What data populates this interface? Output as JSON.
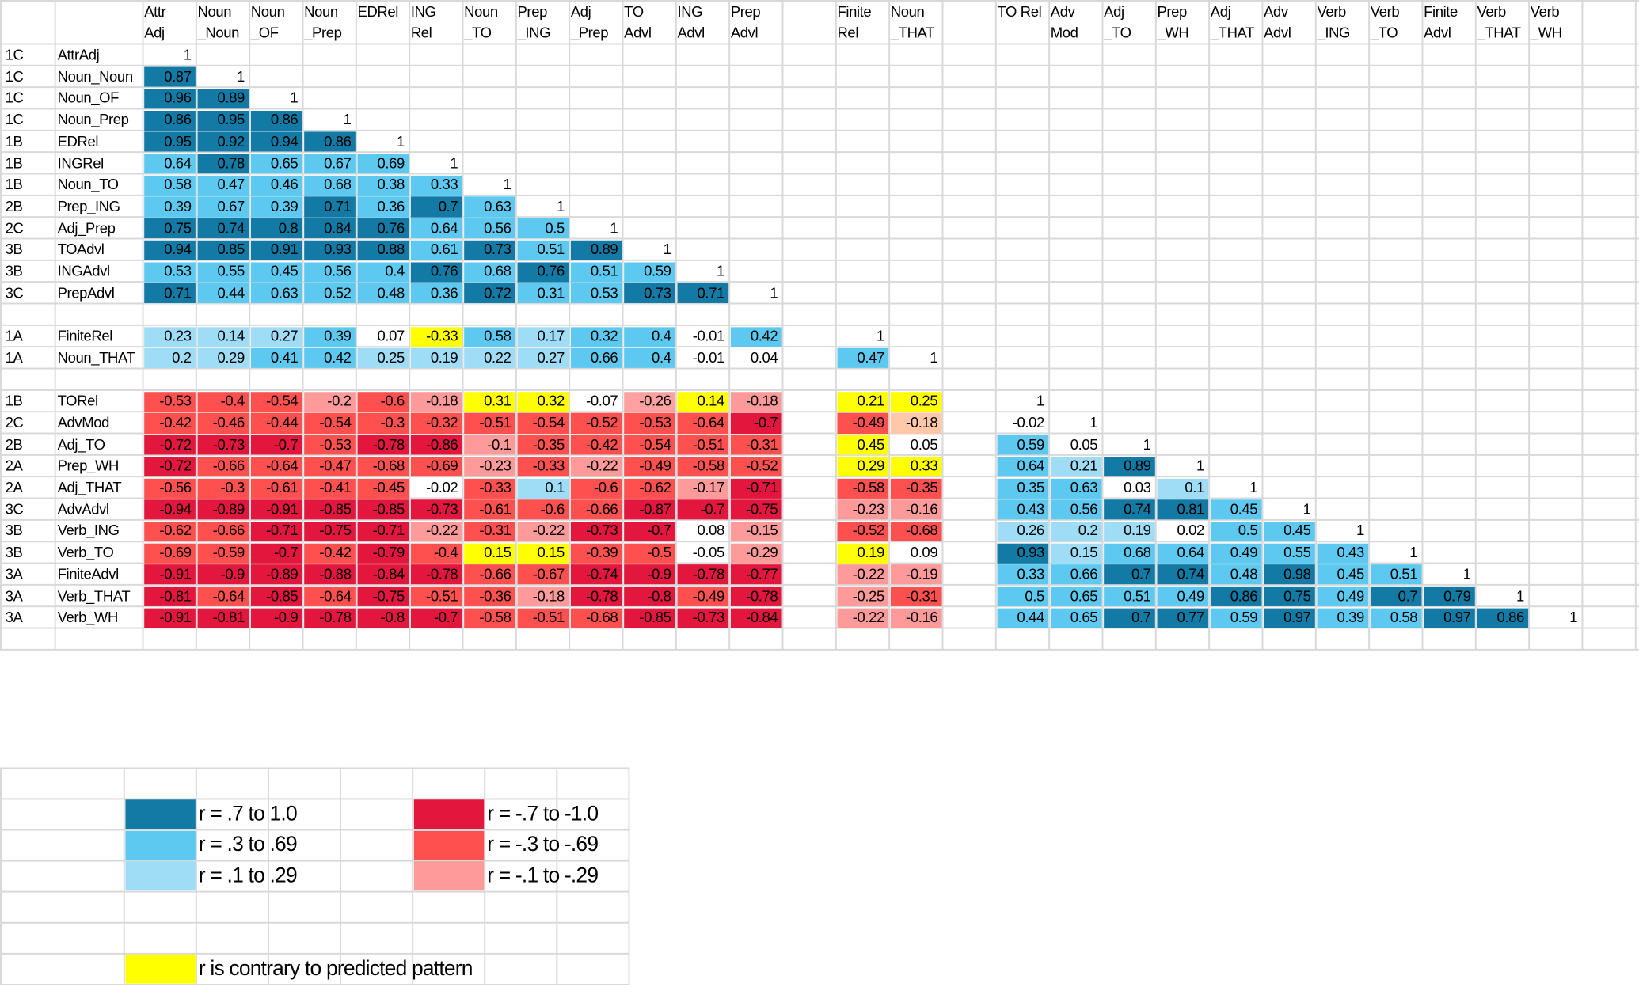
{
  "chart_data": {
    "type": "heatmap",
    "column_headers": [
      [
        "Attr",
        "Adj"
      ],
      [
        "Noun",
        "_Noun"
      ],
      [
        "Noun",
        "_OF"
      ],
      [
        "Noun",
        "_Prep"
      ],
      [
        "EDRel",
        ""
      ],
      [
        "ING",
        "Rel"
      ],
      [
        "Noun",
        "_TO"
      ],
      [
        "Prep",
        "_ING"
      ],
      [
        "Adj",
        "_Prep"
      ],
      [
        "TO",
        "Advl"
      ],
      [
        "ING",
        "Advl"
      ],
      [
        "Prep",
        "Advl"
      ],
      [
        "",
        ""
      ],
      [
        "Finite",
        "Rel"
      ],
      [
        "Noun",
        "_THAT"
      ],
      [
        "",
        ""
      ],
      [
        "TO Rel",
        ""
      ],
      [
        "Adv",
        "Mod"
      ],
      [
        "Adj",
        "_TO"
      ],
      [
        "Prep",
        "_WH"
      ],
      [
        "Adj",
        "_THAT"
      ],
      [
        "Adv",
        "Advl"
      ],
      [
        "Verb",
        "_ING"
      ],
      [
        "Verb",
        "_TO"
      ],
      [
        "Finite",
        "Advl"
      ],
      [
        "Verb",
        "_THAT"
      ],
      [
        "Verb",
        "_WH"
      ]
    ],
    "rows": [
      {
        "code": "1C",
        "label": "AttrAdj",
        "values": [
          "1"
        ]
      },
      {
        "code": "1C",
        "label": "Noun_Noun",
        "values": [
          "0.87",
          "1"
        ]
      },
      {
        "code": "1C",
        "label": "Noun_OF",
        "values": [
          "0.96",
          "0.89",
          "1"
        ]
      },
      {
        "code": "1C",
        "label": "Noun_Prep",
        "values": [
          "0.86",
          "0.95",
          "0.86",
          "1"
        ]
      },
      {
        "code": "1B",
        "label": "EDRel",
        "values": [
          "0.95",
          "0.92",
          "0.94",
          "0.86",
          "1"
        ]
      },
      {
        "code": "1B",
        "label": "INGRel",
        "values": [
          "0.64",
          "0.78",
          "0.65",
          "0.67",
          "0.69",
          "1"
        ]
      },
      {
        "code": "1B",
        "label": "Noun_TO",
        "values": [
          "0.58",
          "0.47",
          "0.46",
          "0.68",
          "0.38",
          "0.33",
          "1"
        ]
      },
      {
        "code": "2B",
        "label": "Prep_ING",
        "values": [
          "0.39",
          "0.67",
          "0.39",
          "0.71",
          "0.36",
          "0.7",
          "0.63",
          "1"
        ]
      },
      {
        "code": "2C",
        "label": "Adj_Prep",
        "values": [
          "0.75",
          "0.74",
          "0.8",
          "0.84",
          "0.76",
          "0.64",
          "0.56",
          "0.5",
          "1"
        ]
      },
      {
        "code": "3B",
        "label": "TOAdvl",
        "values": [
          "0.94",
          "0.85",
          "0.91",
          "0.93",
          "0.88",
          "0.61",
          "0.73",
          "0.51",
          "0.89",
          "1"
        ]
      },
      {
        "code": "3B",
        "label": "INGAdvl",
        "values": [
          "0.53",
          "0.55",
          "0.45",
          "0.56",
          "0.4",
          "0.76",
          "0.68",
          "0.76",
          "0.51",
          "0.59",
          "1"
        ]
      },
      {
        "code": "3C",
        "label": "PrepAdvl",
        "values": [
          "0.71",
          "0.44",
          "0.63",
          "0.52",
          "0.48",
          "0.36",
          "0.72",
          "0.31",
          "0.53",
          "0.73",
          "0.71",
          "1"
        ]
      },
      {
        "code": "",
        "label": "",
        "values": []
      },
      {
        "code": "1A",
        "label": "FiniteRel",
        "values": [
          "0.23",
          "0.14",
          "0.27",
          "0.39",
          "0.07",
          "-0.33",
          "0.58",
          "0.17",
          "0.32",
          "0.4",
          "-0.01",
          "0.42",
          "",
          "1"
        ]
      },
      {
        "code": "1A",
        "label": "Noun_THAT",
        "values": [
          "0.2",
          "0.29",
          "0.41",
          "0.42",
          "0.25",
          "0.19",
          "0.22",
          "0.27",
          "0.66",
          "0.4",
          "-0.01",
          "0.04",
          "",
          "0.47",
          "1"
        ]
      },
      {
        "code": "",
        "label": "",
        "values": []
      },
      {
        "code": "1B",
        "label": "TORel",
        "values": [
          "-0.53",
          "-0.4",
          "-0.54",
          "-0.2",
          "-0.6",
          "-0.18",
          "0.31",
          "0.32",
          "-0.07",
          "-0.26",
          "0.14",
          "-0.18",
          "",
          "0.21",
          "0.25",
          "",
          "1"
        ]
      },
      {
        "code": "2C",
        "label": "AdvMod",
        "values": [
          "-0.42",
          "-0.46",
          "-0.44",
          "-0.54",
          "-0.3",
          "-0.32",
          "-0.51",
          "-0.54",
          "-0.52",
          "-0.53",
          "-0.64",
          "-0.7",
          "",
          "-0.49",
          "-0.18",
          "",
          "-0.02",
          "1"
        ]
      },
      {
        "code": "2B",
        "label": "Adj_TO",
        "values": [
          "-0.72",
          "-0.73",
          "-0.7",
          "-0.53",
          "-0.78",
          "-0.86",
          "-0.1",
          "-0.35",
          "-0.42",
          "-0.54",
          "-0.51",
          "-0.31",
          "",
          "0.45",
          "0.05",
          "",
          "0.59",
          "0.05",
          "1"
        ]
      },
      {
        "code": "2A",
        "label": "Prep_WH",
        "values": [
          "-0.72",
          "-0.66",
          "-0.64",
          "-0.47",
          "-0.68",
          "-0.69",
          "-0.23",
          "-0.33",
          "-0.22",
          "-0.49",
          "-0.58",
          "-0.52",
          "",
          "0.29",
          "0.33",
          "",
          "0.64",
          "0.21",
          "0.89",
          "1"
        ]
      },
      {
        "code": "2A",
        "label": "Adj_THAT",
        "values": [
          "-0.56",
          "-0.3",
          "-0.61",
          "-0.41",
          "-0.45",
          "-0.02",
          "-0.33",
          "0.1",
          "-0.6",
          "-0.62",
          "-0.17",
          "-0.71",
          "",
          "-0.58",
          "-0.35",
          "",
          "0.35",
          "0.63",
          "0.03",
          "0.1",
          "1"
        ]
      },
      {
        "code": "3C",
        "label": "AdvAdvl",
        "values": [
          "-0.94",
          "-0.89",
          "-0.91",
          "-0.85",
          "-0.85",
          "-0.73",
          "-0.61",
          "-0.6",
          "-0.66",
          "-0.87",
          "-0.7",
          "-0.75",
          "",
          "-0.23",
          "-0.16",
          "",
          "0.43",
          "0.56",
          "0.74",
          "0.81",
          "0.45",
          "1"
        ]
      },
      {
        "code": "3B",
        "label": "Verb_ING",
        "values": [
          "-0.62",
          "-0.66",
          "-0.71",
          "-0.75",
          "-0.71",
          "-0.22",
          "-0.31",
          "-0.22",
          "-0.73",
          "-0.7",
          "0.08",
          "-0.15",
          "",
          "-0.52",
          "-0.68",
          "",
          "0.26",
          "0.2",
          "0.19",
          "0.02",
          "0.5",
          "0.45",
          "1"
        ]
      },
      {
        "code": "3B",
        "label": "Verb_TO",
        "values": [
          "-0.69",
          "-0.59",
          "-0.7",
          "-0.42",
          "-0.79",
          "-0.4",
          "0.15",
          "0.15",
          "-0.39",
          "-0.5",
          "-0.05",
          "-0.29",
          "",
          "0.19",
          "0.09",
          "",
          "0.93",
          "0.15",
          "0.68",
          "0.64",
          "0.49",
          "0.55",
          "0.43",
          "1"
        ]
      },
      {
        "code": "3A",
        "label": "FiniteAdvl",
        "values": [
          "-0.91",
          "-0.9",
          "-0.89",
          "-0.88",
          "-0.84",
          "-0.78",
          "-0.66",
          "-0.67",
          "-0.74",
          "-0.9",
          "-0.78",
          "-0.77",
          "",
          "-0.22",
          "-0.19",
          "",
          "0.33",
          "0.66",
          "0.7",
          "0.74",
          "0.48",
          "0.98",
          "0.45",
          "0.51",
          "1"
        ]
      },
      {
        "code": "3A",
        "label": "Verb_THAT",
        "values": [
          "-0.81",
          "-0.64",
          "-0.85",
          "-0.64",
          "-0.75",
          "-0.51",
          "-0.36",
          "-0.18",
          "-0.78",
          "-0.8",
          "-0.49",
          "-0.78",
          "",
          "-0.25",
          "-0.31",
          "",
          "0.5",
          "0.65",
          "0.51",
          "0.49",
          "0.86",
          "0.75",
          "0.49",
          "0.7",
          "0.79",
          "1"
        ]
      },
      {
        "code": "3A",
        "label": "Verb_WH",
        "values": [
          "-0.91",
          "-0.81",
          "-0.9",
          "-0.78",
          "-0.8",
          "-0.7",
          "-0.58",
          "-0.51",
          "-0.68",
          "-0.85",
          "-0.73",
          "-0.84",
          "",
          "-0.22",
          "-0.16",
          "",
          "0.44",
          "0.65",
          "0.7",
          "0.77",
          "0.59",
          "0.97",
          "0.39",
          "0.58",
          "0.97",
          "0.86",
          "1"
        ]
      }
    ],
    "contrary_cells": [
      [
        13,
        5
      ],
      [
        16,
        6
      ],
      [
        16,
        7
      ],
      [
        16,
        10
      ],
      [
        16,
        13
      ],
      [
        16,
        14
      ],
      [
        18,
        13
      ],
      [
        19,
        13
      ],
      [
        19,
        14
      ],
      [
        23,
        6
      ],
      [
        23,
        7
      ],
      [
        23,
        13
      ]
    ],
    "legend": [
      {
        "text": "r = .7 to 1.0",
        "color": "#127aa4"
      },
      {
        "text": "r = .3 to .69",
        "color": "#5ec9f0"
      },
      {
        "text": "r = .1 to .29",
        "color": "#9fdcf6"
      },
      {
        "text": "r = -.7 to -1.0",
        "color": "#e3173e"
      },
      {
        "text": "r = -.3 to -.69",
        "color": "#ff5050"
      },
      {
        "text": "r = -.1 to -.29",
        "color": "#ff9a9a"
      },
      {
        "text": "r is contrary to predicted pattern",
        "color": "#ffff00"
      }
    ]
  },
  "colors": {
    "strong_pos": "#127aa4",
    "mid_pos": "#5ec9f0",
    "weak_pos": "#9fdcf6",
    "strong_neg": "#e3173e",
    "mid_neg": "#ff5050",
    "weak_neg": "#ff9a9a",
    "contrary": "#ffff00",
    "contrary_light": "#ffc8a8",
    "grid": "#d9d9d9"
  }
}
